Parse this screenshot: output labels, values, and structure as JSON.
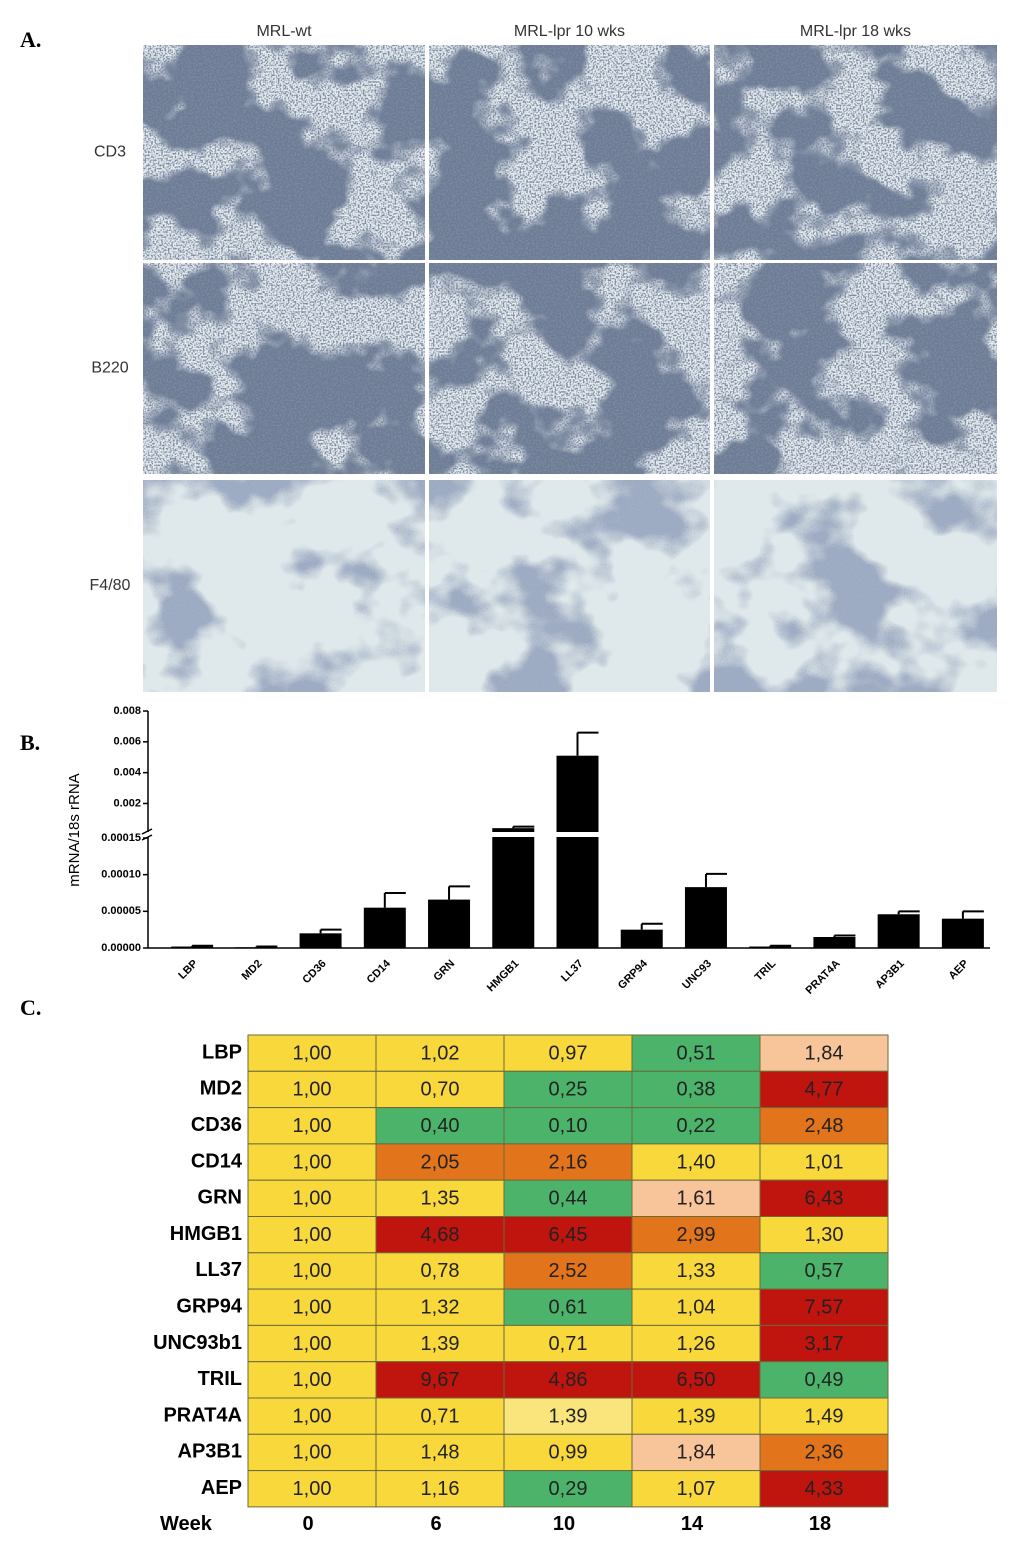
{
  "panel_a": {
    "label": "A.",
    "columns": [
      "MRL-wt",
      "MRL-lpr 10 wks",
      "MRL-lpr 18 wks"
    ],
    "rows": [
      "CD3",
      "B220",
      "F4/80"
    ]
  },
  "chart_data": {
    "type": "bar",
    "panel_label": "B.",
    "ylabel": "mRNA/18s rRNA",
    "color": "#000000",
    "categories": [
      "LBP",
      "MD2",
      "CD36",
      "CD14",
      "GRN",
      "HMGB1",
      "LL37",
      "GRP94",
      "UNC93",
      "TRIL",
      "PRAT4A",
      "AP3B1",
      "AEP"
    ],
    "values": [
      2e-06,
      1e-06,
      2e-05,
      5.5e-05,
      6.6e-05,
      0.0004,
      0.0051,
      2.5e-05,
      8.3e-05,
      2e-06,
      1.5e-05,
      4.6e-05,
      4e-05
    ],
    "errors": [
      1e-06,
      1e-06,
      5e-06,
      2e-05,
      1.8e-05,
      0.0001,
      0.0015,
      8e-06,
      1.8e-05,
      1e-06,
      2e-06,
      4e-06,
      1e-05
    ],
    "axis_segments": [
      {
        "ylim": [
          0,
          0.00015
        ],
        "yticks": [
          {
            "value": 0,
            "label": "0.00000"
          },
          5e-05,
          {
            "value": 0.0001,
            "label": "0.00010"
          },
          0.00015
        ]
      },
      {
        "ylim": [
          0.00015,
          0.008
        ],
        "yticks": [
          0.002,
          0.004,
          0.006,
          0.008
        ]
      }
    ]
  },
  "panel_c": {
    "label": "C.",
    "x_label": "Week",
    "columns": [
      "0",
      "6",
      "10",
      "14",
      "18"
    ],
    "rows": [
      {
        "gene": "LBP",
        "cells": [
          "1,00",
          "1,02",
          "0,97",
          "0,51",
          "1,84"
        ],
        "colors": [
          "#f9d83c",
          "#f9d83c",
          "#f9d83c",
          "#4cb46a",
          "#f8c49a"
        ]
      },
      {
        "gene": "MD2",
        "cells": [
          "1,00",
          "0,70",
          "0,25",
          "0,38",
          "4,77"
        ],
        "colors": [
          "#f9d83c",
          "#f9d83c",
          "#4cb46a",
          "#4cb46a",
          "#c0140f"
        ]
      },
      {
        "gene": "CD36",
        "cells": [
          "1,00",
          "0,40",
          "0,10",
          "0,22",
          "2,48"
        ],
        "colors": [
          "#f9d83c",
          "#4cb46a",
          "#4cb46a",
          "#4cb46a",
          "#e2741c"
        ]
      },
      {
        "gene": "CD14",
        "cells": [
          "1,00",
          "2,05",
          "2,16",
          "1,40",
          "1,01"
        ],
        "colors": [
          "#f9d83c",
          "#e2741c",
          "#e2741c",
          "#f9d83c",
          "#f9d83c"
        ]
      },
      {
        "gene": "GRN",
        "cells": [
          "1,00",
          "1,35",
          "0,44",
          "1,61",
          "6,43"
        ],
        "colors": [
          "#f9d83c",
          "#f9d83c",
          "#4cb46a",
          "#f8c49a",
          "#c0140f"
        ]
      },
      {
        "gene": "HMGB1",
        "cells": [
          "1,00",
          "4,68",
          "6,45",
          "2,99",
          "1,30"
        ],
        "colors": [
          "#f9d83c",
          "#c0140f",
          "#c0140f",
          "#e2741c",
          "#f9d83c"
        ]
      },
      {
        "gene": "LL37",
        "cells": [
          "1,00",
          "0,78",
          "2,52",
          "1,33",
          "0,57"
        ],
        "colors": [
          "#f9d83c",
          "#f9d83c",
          "#e2741c",
          "#f9d83c",
          "#4cb46a"
        ]
      },
      {
        "gene": "GRP94",
        "cells": [
          "1,00",
          "1,32",
          "0,61",
          "1,04",
          "7,57"
        ],
        "colors": [
          "#f9d83c",
          "#f9d83c",
          "#4cb46a",
          "#f9d83c",
          "#c0140f"
        ]
      },
      {
        "gene": "UNC93b1",
        "cells": [
          "1,00",
          "1,39",
          "0,71",
          "1,26",
          "3,17"
        ],
        "colors": [
          "#f9d83c",
          "#f9d83c",
          "#f9d83c",
          "#f9d83c",
          "#c0140f"
        ]
      },
      {
        "gene": "TRIL",
        "cells": [
          "1,00",
          "9,67",
          "4,86",
          "6,50",
          "0,49"
        ],
        "colors": [
          "#f9d83c",
          "#c0140f",
          "#c0140f",
          "#c0140f",
          "#4cb46a"
        ]
      },
      {
        "gene": "PRAT4A",
        "cells": [
          "1,00",
          "0,71",
          "1,39",
          "1,39",
          "1,49"
        ],
        "colors": [
          "#f9d83c",
          "#f9d83c",
          "#f9e57c",
          "#f9d83c",
          "#f9d83c"
        ]
      },
      {
        "gene": "AP3B1",
        "cells": [
          "1,00",
          "1,48",
          "0,99",
          "1,84",
          "2,36"
        ],
        "colors": [
          "#f9d83c",
          "#f9d83c",
          "#f9d83c",
          "#f8c49a",
          "#e2741c"
        ]
      },
      {
        "gene": "AEP",
        "cells": [
          "1,00",
          "1,16",
          "0,29",
          "1,07",
          "4,33"
        ],
        "colors": [
          "#f9d83c",
          "#f9d83c",
          "#4cb46a",
          "#f9d83c",
          "#c0140f"
        ]
      }
    ]
  }
}
